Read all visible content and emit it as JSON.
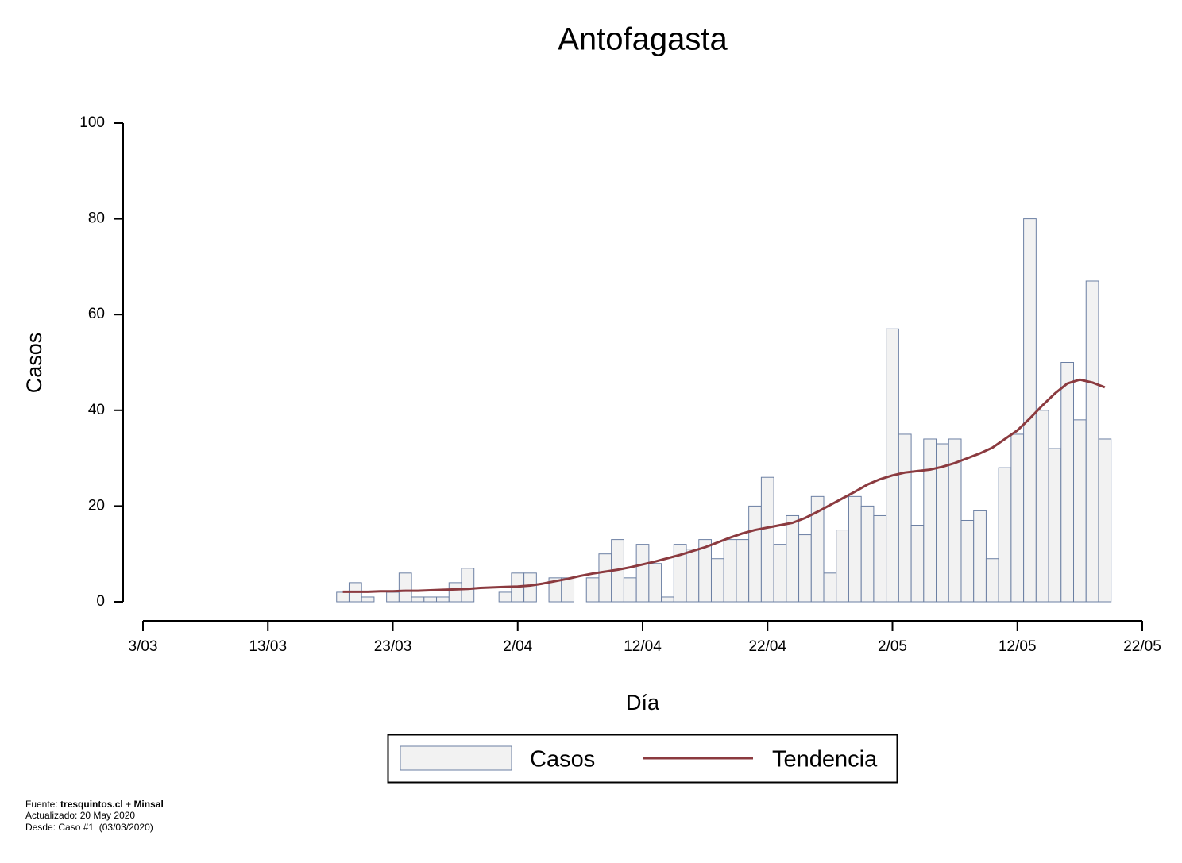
{
  "chart_data": {
    "type": "bar",
    "title": "Antofagasta",
    "x_label": "Día",
    "y_label": "Casos",
    "x": [
      "19/03",
      "20/03",
      "21/03",
      "22/03",
      "23/03",
      "24/03",
      "25/03",
      "26/03",
      "27/03",
      "28/03",
      "29/03",
      "30/03",
      "31/03",
      "1/04",
      "2/04",
      "3/04",
      "4/04",
      "5/04",
      "6/04",
      "7/04",
      "8/04",
      "9/04",
      "10/04",
      "11/04",
      "12/04",
      "13/04",
      "14/04",
      "15/04",
      "16/04",
      "17/04",
      "18/04",
      "19/04",
      "20/04",
      "21/04",
      "22/04",
      "23/04",
      "24/04",
      "25/04",
      "26/04",
      "27/04",
      "28/04",
      "29/04",
      "30/04",
      "1/05",
      "2/05",
      "3/05",
      "4/05",
      "5/05",
      "6/05",
      "7/05",
      "8/05",
      "9/05",
      "10/05",
      "11/05",
      "12/05",
      "13/05",
      "14/05",
      "15/05",
      "16/05",
      "17/05",
      "18/05",
      "19/05"
    ],
    "series": [
      {
        "name": "Casos",
        "type": "bar",
        "color": "#f2f2f2",
        "edge_color": "#6b7fa3",
        "values": [
          2,
          4,
          1,
          0,
          2,
          6,
          1,
          1,
          1,
          4,
          7,
          0,
          0,
          2,
          6,
          6,
          0,
          5,
          5,
          0,
          5,
          10,
          13,
          5,
          12,
          8,
          1,
          12,
          11,
          13,
          9,
          13,
          13,
          20,
          26,
          12,
          18,
          14,
          22,
          6,
          15,
          22,
          20,
          18,
          57,
          35,
          16,
          34,
          33,
          34,
          17,
          19,
          9,
          28,
          35,
          80,
          40,
          32,
          50,
          38,
          67,
          34
        ]
      },
      {
        "name": "Tendencia",
        "type": "line",
        "color": "#8b3a3f",
        "values": [
          2.1,
          2.1,
          2.1,
          2.2,
          2.2,
          2.3,
          2.3,
          2.4,
          2.5,
          2.6,
          2.7,
          2.9,
          3.0,
          3.1,
          3.2,
          3.4,
          3.8,
          4.3,
          4.8,
          5.4,
          5.9,
          6.3,
          6.7,
          7.2,
          7.8,
          8.4,
          9.1,
          9.8,
          10.6,
          11.4,
          12.4,
          13.4,
          14.3,
          15.0,
          15.5,
          16.0,
          16.5,
          17.5,
          18.8,
          20.2,
          21.6,
          23.0,
          24.5,
          25.6,
          26.4,
          27.0,
          27.3,
          27.6,
          28.2,
          29.0,
          30.0,
          31.0,
          32.2,
          34.0,
          35.8,
          38.3,
          41.0,
          43.5,
          45.6,
          46.4,
          45.8,
          44.8
        ]
      }
    ],
    "xlim": [
      "3/03",
      "22/05"
    ],
    "xticks": [
      "3/03",
      "13/03",
      "23/03",
      "2/04",
      "12/04",
      "22/04",
      "2/05",
      "12/05",
      "22/05"
    ],
    "ylim": [
      0,
      100
    ],
    "yticks": [
      0,
      20,
      40,
      60,
      80,
      100
    ],
    "grid": false,
    "legend": "bottom",
    "footer": {
      "source_label": "Fuente:",
      "source_1": "tresquintos.cl",
      "plus": "+",
      "source_2": "Minsal",
      "updated": "Actualizado: 20 May 2020",
      "since": "Desde: Caso #1  (03/03/2020)"
    }
  }
}
